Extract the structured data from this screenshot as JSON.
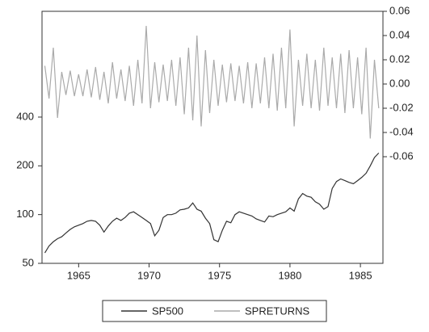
{
  "chart_data": {
    "type": "line",
    "x": [
      1962.6,
      1962.9,
      1963.2,
      1963.5,
      1963.8,
      1964.1,
      1964.4,
      1964.7,
      1965,
      1965.3,
      1965.6,
      1965.9,
      1966.2,
      1966.5,
      1966.8,
      1967.1,
      1967.4,
      1967.7,
      1968,
      1968.3,
      1968.6,
      1968.9,
      1969.2,
      1969.5,
      1969.8,
      1970.1,
      1970.4,
      1970.7,
      1971,
      1971.3,
      1971.6,
      1971.9,
      1972.2,
      1972.5,
      1972.8,
      1973.1,
      1973.4,
      1973.7,
      1974,
      1974.3,
      1974.6,
      1974.9,
      1975.2,
      1975.5,
      1975.8,
      1976.1,
      1976.4,
      1976.7,
      1977,
      1977.3,
      1977.6,
      1977.9,
      1978.2,
      1978.5,
      1978.8,
      1979.1,
      1979.4,
      1979.7,
      1980,
      1980.3,
      1980.6,
      1980.9,
      1981.2,
      1981.5,
      1981.8,
      1982.1,
      1982.4,
      1982.7,
      1983,
      1983.3,
      1983.6,
      1983.9,
      1984.2,
      1984.5,
      1984.8,
      1985.1,
      1985.4,
      1985.7,
      1986,
      1986.3
    ],
    "series": [
      {
        "name": "SP500",
        "color": "#333333",
        "axis": "y",
        "values": [
          58,
          64,
          68,
          71,
          73,
          77,
          81,
          84,
          86,
          88,
          91,
          92,
          91,
          86,
          78,
          85,
          91,
          95,
          92,
          96,
          102,
          104,
          100,
          96,
          92,
          88,
          74,
          80,
          96,
          100,
          100,
          102,
          107,
          108,
          110,
          118,
          108,
          105,
          95,
          88,
          70,
          68,
          80,
          91,
          89,
          100,
          104,
          102,
          100,
          98,
          94,
          92,
          90,
          98,
          97,
          100,
          102,
          104,
          110,
          105,
          125,
          135,
          130,
          128,
          120,
          116,
          108,
          112,
          145,
          160,
          166,
          162,
          158,
          155,
          162,
          170,
          180,
          200,
          225,
          240
        ]
      },
      {
        "name": "SPRETURNS",
        "color": "#aaaaaa",
        "axis": "y2",
        "values": [
          0.015,
          -0.012,
          0.03,
          -0.028,
          0.01,
          -0.009,
          0.011,
          -0.01,
          0.008,
          -0.01,
          0.012,
          -0.011,
          0.014,
          -0.013,
          0.01,
          -0.016,
          0.018,
          -0.012,
          0.012,
          -0.014,
          0.015,
          -0.018,
          0.02,
          -0.016,
          0.048,
          -0.02,
          0.018,
          -0.015,
          0.016,
          -0.014,
          0.02,
          -0.018,
          0.022,
          -0.025,
          0.03,
          -0.03,
          0.04,
          -0.035,
          0.028,
          -0.024,
          0.02,
          -0.018,
          0.016,
          -0.015,
          0.017,
          -0.014,
          0.015,
          -0.016,
          0.018,
          -0.02,
          0.017,
          -0.016,
          0.022,
          -0.02,
          0.025,
          -0.022,
          0.03,
          -0.02,
          0.045,
          -0.035,
          0.02,
          -0.018,
          0.025,
          -0.02,
          0.02,
          -0.022,
          0.03,
          -0.018,
          0.022,
          -0.02,
          0.025,
          -0.024,
          0.028,
          -0.02,
          0.022,
          -0.025,
          0.03,
          -0.045,
          0.02,
          -0.02
        ]
      }
    ],
    "xlim": [
      1962.4,
      1986.6
    ],
    "xticks": [
      1965,
      1970,
      1975,
      1980,
      1985
    ],
    "ylim": [
      50,
      1800
    ],
    "yticks": [
      50,
      100,
      200,
      400
    ],
    "ylog": true,
    "y2lim": [
      -0.148,
      0.06
    ],
    "y2ticks": [
      -0.06,
      -0.04,
      -0.02,
      {
        "value": 0,
        "label": "0.00"
      },
      0.02,
      0.04,
      0.06
    ]
  }
}
